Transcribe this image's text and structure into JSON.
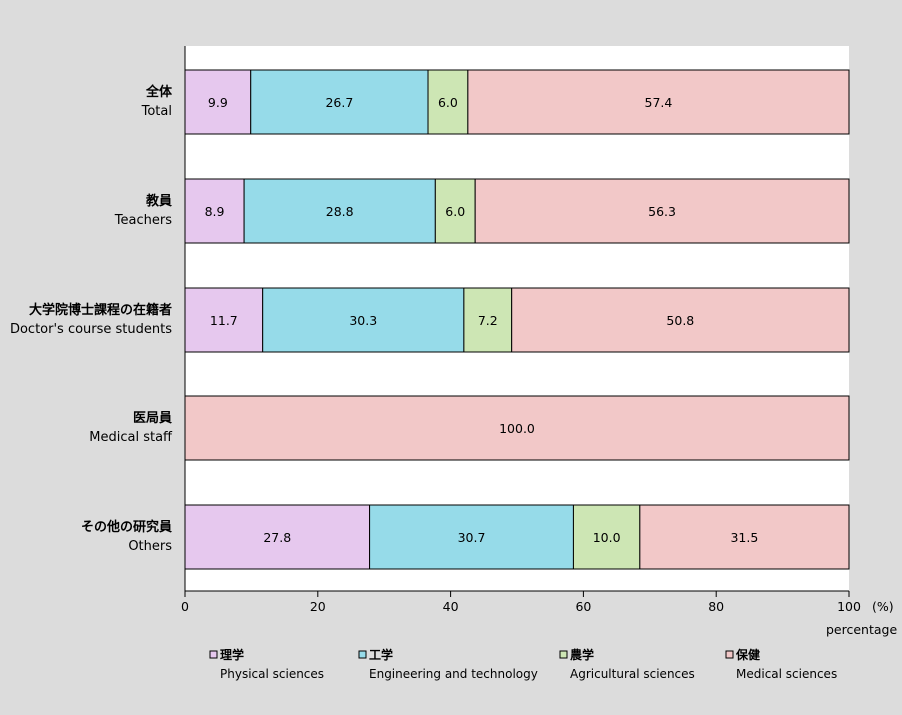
{
  "chart_data": {
    "type": "bar",
    "orientation": "horizontal",
    "stacked": true,
    "categories": [
      {
        "ja": "全体",
        "en": "Total"
      },
      {
        "ja": "教員",
        "en": "Teachers"
      },
      {
        "ja": "大学院博士課程の在籍者",
        "en": "Doctor's course students"
      },
      {
        "ja": "医局員",
        "en": "Medical staff"
      },
      {
        "ja": "その他の研究員",
        "en": "Others"
      }
    ],
    "series": [
      {
        "name_ja": "理学",
        "name_en": "Physical sciences",
        "color": "#e6c8ee",
        "values": [
          9.9,
          8.9,
          11.7,
          0,
          27.8
        ]
      },
      {
        "name_ja": "工学",
        "name_en": "Engineering and technology",
        "color": "#96dbe9",
        "values": [
          26.7,
          28.8,
          30.3,
          0,
          30.7
        ]
      },
      {
        "name_ja": "農学",
        "name_en": "Agricultural sciences",
        "color": "#cde6b4",
        "values": [
          6.0,
          6.0,
          7.2,
          0,
          10.0
        ]
      },
      {
        "name_ja": "保健",
        "name_en": "Medical sciences",
        "color": "#f2c8c8",
        "values": [
          57.4,
          56.3,
          50.8,
          100.0,
          31.5
        ]
      }
    ],
    "xlim": [
      0,
      100
    ],
    "xticks": [
      0,
      20,
      40,
      60,
      80,
      100
    ],
    "xunit": "(%)",
    "xlabel": "percentage",
    "legend_position": "bottom",
    "grid": false
  }
}
